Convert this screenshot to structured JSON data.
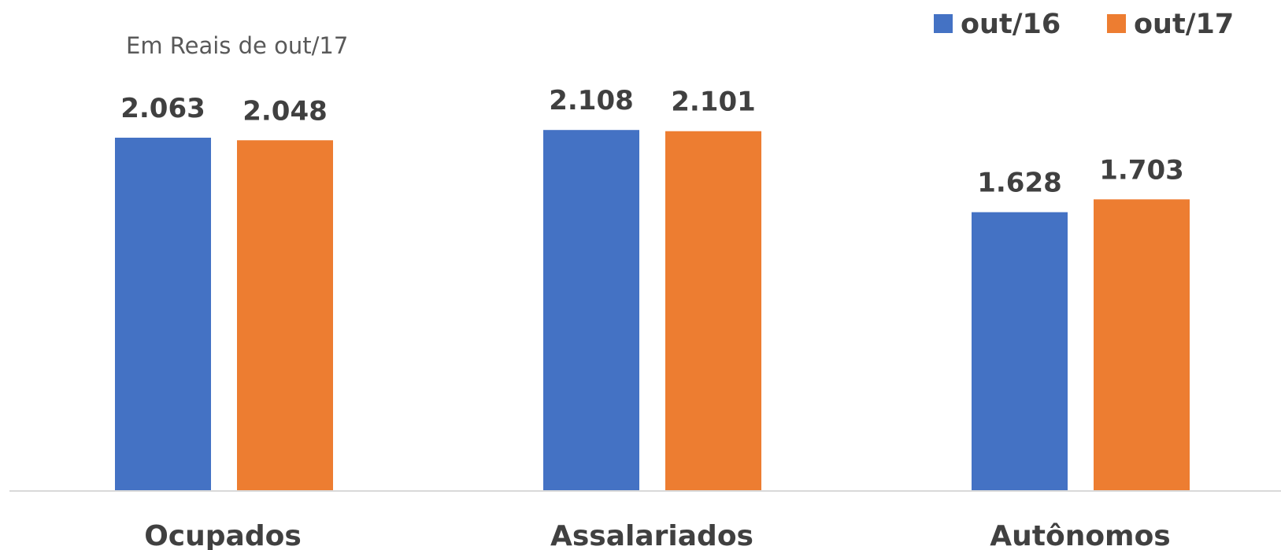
{
  "chart_data": {
    "type": "bar",
    "unit_label": "Em Reais de out/17",
    "categories": [
      "Ocupados",
      "Assalariados",
      "Autônomos"
    ],
    "series": [
      {
        "name": "out/16",
        "color": "#4472C4",
        "values": [
          2063,
          2108,
          1628
        ],
        "labels": [
          "2.063",
          "2.108",
          "1.628"
        ]
      },
      {
        "name": "out/17",
        "color": "#ED7D31",
        "values": [
          2048,
          2101,
          1703
        ],
        "labels": [
          "2.048",
          "2.101",
          "1.703"
        ]
      }
    ],
    "ylim": [
      0,
      2300
    ],
    "grid": false,
    "legend_position": "top-right"
  }
}
